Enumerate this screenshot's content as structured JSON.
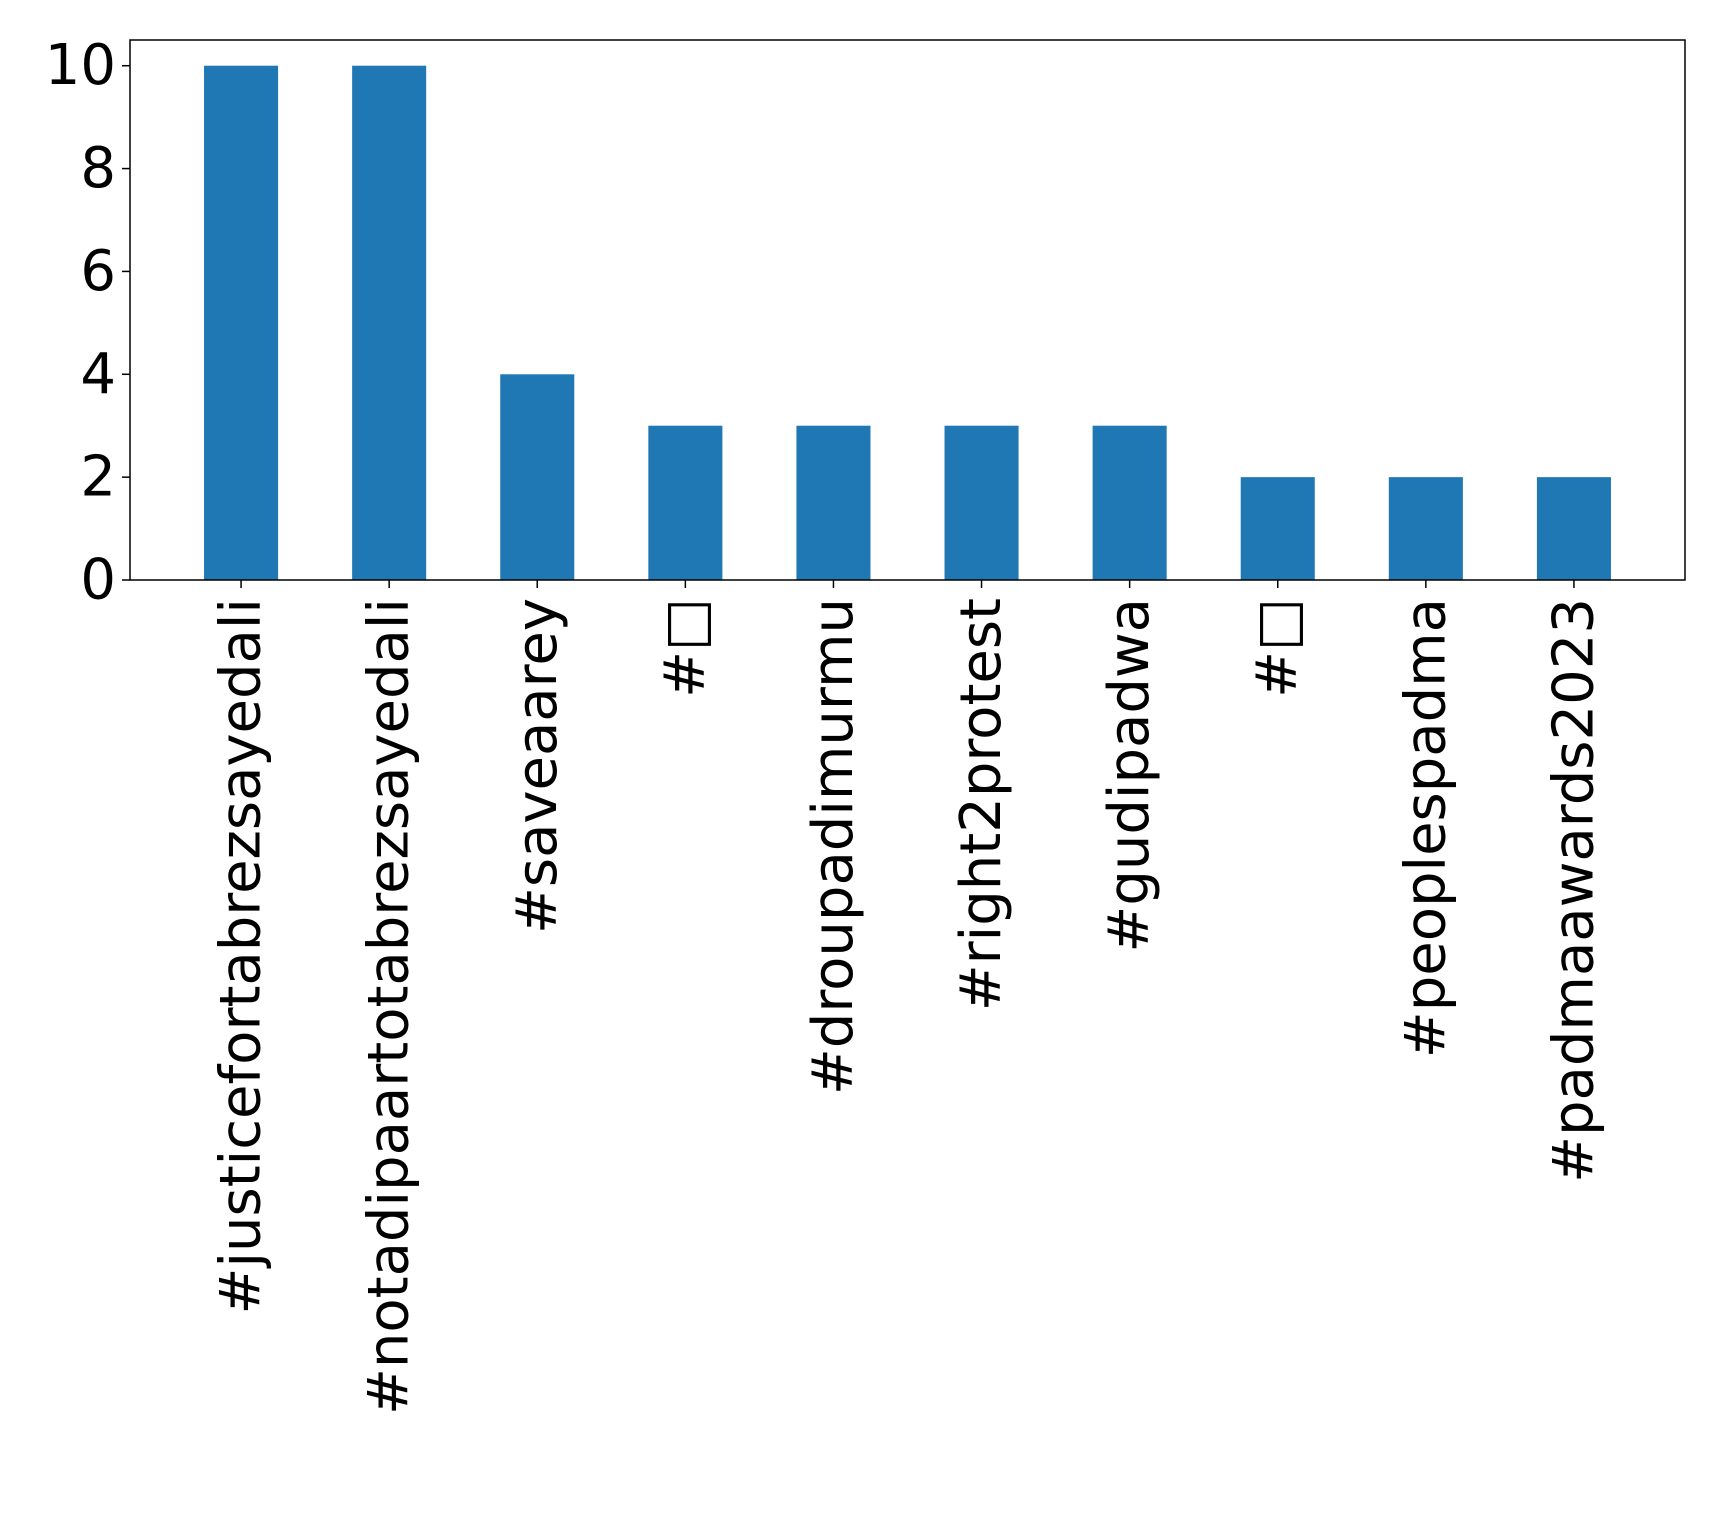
{
  "chart_data": {
    "type": "bar",
    "categories": [
      "#justicefortabrezsayedali",
      "#notadipaartotabrezsayedali",
      "#saveaarey",
      "#□",
      "#droupadimurmu",
      "#right2protest",
      "#gudipadwa",
      "#□",
      "#peoplespadma",
      "#padmaawards2023"
    ],
    "values": [
      10,
      10,
      4,
      3,
      3,
      3,
      3,
      2,
      2,
      2
    ],
    "title": "",
    "xlabel": "",
    "ylabel": "",
    "ylim": [
      0,
      10.5
    ],
    "yticks": [
      0,
      2,
      4,
      6,
      8,
      10
    ],
    "grid": false,
    "legend": "none",
    "bar_color": "#1f77b4"
  }
}
